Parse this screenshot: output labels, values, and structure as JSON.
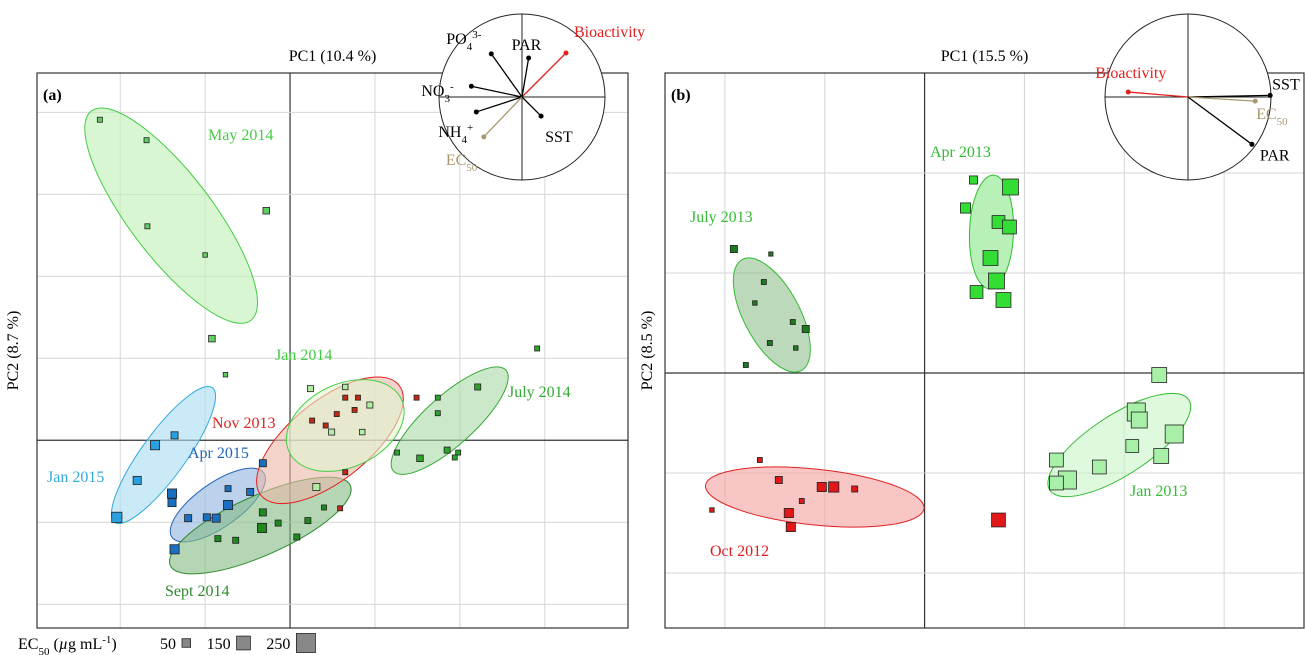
{
  "chart_data": [
    {
      "type": "scatter",
      "panel_label": "(a)",
      "x_label": "PC1 (10.4 %)",
      "y_label": "PC2 (8.7 %)",
      "xlim": [
        -2.98,
        3.98
      ],
      "ylim": [
        -2.29,
        4.48
      ],
      "xgrid": [
        -2,
        -1,
        0,
        1,
        2,
        3
      ],
      "ygrid": [
        -2,
        -1,
        0,
        1,
        2,
        3,
        4
      ],
      "groups": [
        {
          "name": "May 2014",
          "color": "#44cc44",
          "fill": "#bff0b5",
          "point_color": "#5fcf5f",
          "ellipse": {
            "cx": -1.4,
            "cy": 2.74,
            "rx": 1.55,
            "ry": 0.49,
            "angle": -52.7
          },
          "x": [
            -2.24,
            -1.69,
            -1.68,
            -1.0,
            -0.28,
            -0.92,
            -0.76
          ],
          "y": [
            3.91,
            3.66,
            2.61,
            2.26,
            2.8,
            1.24,
            0.8
          ],
          "size": [
            20,
            20,
            20,
            10,
            50,
            50,
            10
          ]
        },
        {
          "name": "Jan 2015",
          "color": "#33aadd",
          "fill": "#a8dcf2",
          "point_color": "#2aa0e0",
          "ellipse": {
            "cx": -1.49,
            "cy": -0.18,
            "rx": 0.98,
            "ry": 0.26,
            "angle": 54
          },
          "x": [
            -2.04,
            -1.8,
            -1.59,
            -1.36
          ],
          "y": [
            -0.94,
            -0.49,
            -0.06,
            0.06
          ],
          "size": [
            120,
            80,
            100,
            60
          ]
        },
        {
          "name": "Apr 2015",
          "color": "#2266bb",
          "fill": "#8fb2e0",
          "point_color": "#1a6fc0",
          "ellipse": {
            "cx": -0.85,
            "cy": -0.79,
            "rx": 0.66,
            "ry": 0.26,
            "angle": 35
          },
          "x": [
            -1.39,
            -1.39,
            -1.2,
            -0.98,
            -0.87,
            -0.73,
            -0.73,
            -0.47,
            -0.32,
            -1.36
          ],
          "y": [
            -0.65,
            -0.76,
            -0.95,
            -0.94,
            -0.95,
            -0.79,
            -0.59,
            -0.63,
            -0.28,
            -1.33
          ],
          "size": [
            100,
            80,
            60,
            60,
            80,
            100,
            40,
            60,
            60,
            100
          ]
        },
        {
          "name": "Sept 2014",
          "color": "#2e8b2e",
          "fill": "#84bb84",
          "point_color": "#1e8a1e",
          "ellipse": {
            "cx": -0.35,
            "cy": -1.04,
            "rx": 1.16,
            "ry": 0.35,
            "angle": 24
          },
          "x": [
            -0.85,
            -0.33,
            -0.32,
            -0.14,
            0.08,
            0.21,
            -0.64,
            0.4
          ],
          "y": [
            -1.2,
            -1.07,
            -0.88,
            -1.01,
            -1.18,
            -0.98,
            -1.22,
            -0.82
          ],
          "size": [
            40,
            100,
            60,
            40,
            40,
            40,
            40,
            20
          ]
        },
        {
          "name": "Nov 2013",
          "color": "#e02020",
          "fill": "#eab8a8",
          "point_color": "#c02818",
          "ellipse": {
            "cx": 0.47,
            "cy": 0.0,
            "rx": 1.04,
            "ry": 0.47,
            "angle": 38.6
          },
          "x": [
            0.26,
            0.42,
            0.65,
            0.8,
            0.55,
            0.65,
            0.59,
            1.49,
            0.76
          ],
          "y": [
            0.24,
            0.18,
            0.52,
            0.52,
            0.32,
            -0.39,
            -0.83,
            0.52,
            0.37
          ],
          "size": [
            20,
            20,
            20,
            20,
            20,
            20,
            20,
            20,
            20
          ]
        },
        {
          "name": "Jan 2014",
          "color": "#44cc44",
          "fill": "#e0f5d0",
          "point_color": "#b0eea0",
          "ellipse": {
            "cx": 0.65,
            "cy": 0.18,
            "rx": 0.73,
            "ry": 0.49,
            "angle": 25
          },
          "x": [
            0.24,
            0.65,
            0.94,
            0.85,
            0.49,
            0.31
          ],
          "y": [
            0.63,
            0.65,
            0.43,
            0.1,
            0.1,
            -0.57
          ],
          "size": [
            40,
            30,
            40,
            30,
            40,
            60
          ]
        },
        {
          "name": "July 2014",
          "color": "#33aa33",
          "fill": "#a8d8a8",
          "point_color": "#2aa52a",
          "ellipse": {
            "cx": 1.88,
            "cy": 0.24,
            "rx": 0.89,
            "ry": 0.29,
            "angle": 42
          },
          "x": [
            1.74,
            1.74,
            2.21,
            1.85,
            1.98,
            1.53,
            1.26,
            2.91,
            1.94
          ],
          "y": [
            0.52,
            0.33,
            0.65,
            -0.12,
            -0.15,
            -0.22,
            -0.15,
            1.12,
            -0.21
          ],
          "size": [
            20,
            20,
            40,
            40,
            20,
            50,
            20,
            20,
            20
          ]
        }
      ],
      "loadings": [
        {
          "label": "Bioactivity",
          "color": "#e02020",
          "x": 0.53,
          "y": 0.53
        },
        {
          "label": "PAR",
          "color": "#000000",
          "x": 0.08,
          "y": 0.47
        },
        {
          "label": "PO",
          "sub": "4",
          "sup": "3-",
          "color": "#000000",
          "x": -0.37,
          "y": 0.52
        },
        {
          "label": "NO",
          "sub": "3",
          "sup": "-",
          "color": "#000000",
          "x": -0.61,
          "y": 0.13
        },
        {
          "label": "NH",
          "sub": "4",
          "sup": "+",
          "color": "#000000",
          "x": -0.55,
          "y": -0.18
        },
        {
          "label": "EC",
          "sub": "50",
          "color": "#a89870",
          "x": -0.46,
          "y": -0.48
        },
        {
          "label": "SST",
          "color": "#000000",
          "x": 0.23,
          "y": -0.23
        }
      ],
      "size_legend": {
        "title": "EC",
        "title_sub": "50",
        "title_pre": " (",
        "title_mu": "µ",
        "title_unit": "g mL",
        "title_sup": "-1",
        "title_end": ")",
        "values": [
          50,
          150,
          250
        ]
      }
    },
    {
      "type": "scatter",
      "panel_label": "(b)",
      "x_label": "PC1 (15.5 %)",
      "y_label": "PC2 (8.5 %)",
      "xlim": [
        -2.6,
        3.8
      ],
      "ylim": [
        -2.55,
        3.0
      ],
      "xgrid": [
        -2,
        -1,
        0,
        1,
        2,
        3
      ],
      "ygrid": [
        -2,
        -1,
        0,
        1,
        2
      ],
      "groups": [
        {
          "name": "July 2013",
          "color": "#33bb33",
          "fill": "#8fc08f",
          "point_color": "#1e7a1e",
          "ellipse": {
            "cx": -1.53,
            "cy": 0.58,
            "rx": 0.63,
            "ry": 0.28,
            "angle": -62
          },
          "x": [
            -1.91,
            -1.61,
            -1.7,
            -1.54,
            -1.32,
            -1.19,
            -1.55,
            -1.29,
            -1.79
          ],
          "y": [
            1.24,
            0.91,
            0.7,
            1.19,
            0.51,
            0.44,
            0.3,
            0.25,
            0.08
          ],
          "size": [
            60,
            20,
            10,
            5,
            20,
            60,
            20,
            10,
            20
          ]
        },
        {
          "name": "Apr 2013",
          "color": "#33bb33",
          "fill": "#88e888",
          "point_color": "#33dd33",
          "ellipse": {
            "cx": 0.67,
            "cy": 1.41,
            "rx": 0.57,
            "ry": 0.22,
            "angle": 88
          },
          "x": [
            0.49,
            0.86,
            0.41,
            0.74,
            0.85,
            0.66,
            0.72,
            0.52,
            0.79
          ],
          "y": [
            1.93,
            1.86,
            1.65,
            1.51,
            1.46,
            1.15,
            0.92,
            0.81,
            0.73
          ],
          "size": [
            80,
            230,
            120,
            170,
            190,
            210,
            230,
            170,
            210
          ]
        },
        {
          "name": "Jan 2013",
          "color": "#33bb33",
          "fill": "#c8f5c8",
          "point_color": "#a8f0a8",
          "ellipse": {
            "cx": 1.95,
            "cy": -0.72,
            "rx": 0.83,
            "ry": 0.3,
            "angle": 33
          },
          "x": [
            2.35,
            2.12,
            2.15,
            2.5,
            2.08,
            2.37,
            1.75,
            1.32,
            1.43,
            1.32
          ],
          "y": [
            -0.02,
            -0.39,
            -0.47,
            -0.61,
            -0.73,
            -0.83,
            -0.94,
            -0.87,
            -1.07,
            -1.1
          ],
          "size": [
            210,
            270,
            230,
            270,
            170,
            210,
            190,
            190,
            270,
            190
          ]
        },
        {
          "name": "Oct 2012",
          "color": "#e02020",
          "fill": "#f5a0a0",
          "point_color": "#e01818",
          "ellipse": {
            "cx": -1.1,
            "cy": -1.24,
            "rx": 1.1,
            "ry": 0.28,
            "angle": -6
          },
          "x": [
            -2.13,
            -1.65,
            -1.46,
            -1.36,
            -1.34,
            -1.23,
            -1.03,
            -0.91,
            -0.7,
            0.74
          ],
          "y": [
            -1.37,
            -0.87,
            -1.07,
            -1.4,
            -1.54,
            -1.28,
            -1.14,
            -1.14,
            -1.16,
            -1.47
          ],
          "size": [
            10,
            20,
            60,
            100,
            100,
            20,
            100,
            120,
            40,
            190
          ]
        }
      ],
      "loadings": [
        {
          "label": "Bioactivity",
          "color": "#e02020",
          "x": -0.72,
          "y": 0.06
        },
        {
          "label": "SST",
          "color": "#000000",
          "x": 0.99,
          "y": 0.02
        },
        {
          "label": "EC",
          "sub": "50",
          "color": "#a89870",
          "x": 0.81,
          "y": -0.05
        },
        {
          "label": "PAR",
          "color": "#000000",
          "x": 0.77,
          "y": -0.57
        }
      ]
    }
  ]
}
